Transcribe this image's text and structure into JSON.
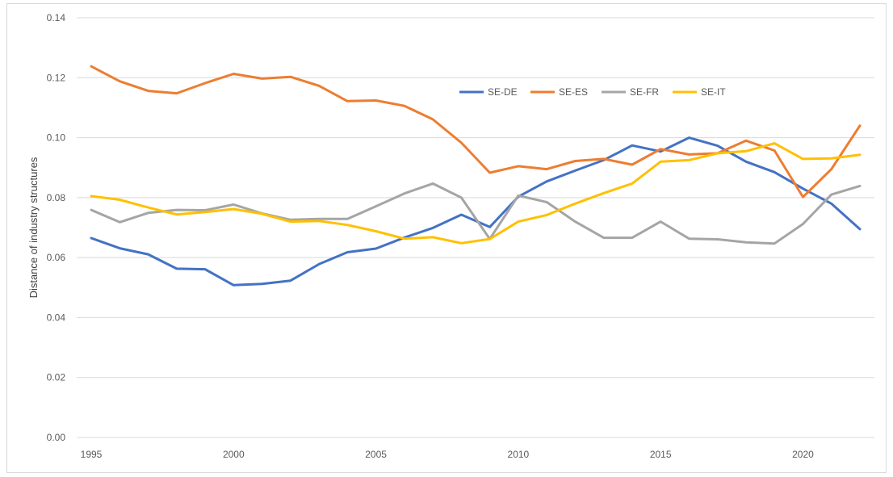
{
  "chart_data": {
    "type": "line",
    "title": "",
    "xlabel": "",
    "ylabel": "Distance of industry structures",
    "xlim": [
      1995,
      2022
    ],
    "ylim": [
      0,
      0.14
    ],
    "x_ticks": [
      1995,
      2000,
      2005,
      2010,
      2015,
      2020
    ],
    "x_tick_labels": [
      "1995",
      "2000",
      "2005",
      "2010",
      "2015",
      "2020"
    ],
    "y_ticks": [
      0,
      0.02,
      0.04,
      0.06,
      0.08,
      0.1,
      0.12,
      0.14
    ],
    "y_tick_labels": [
      "0.00",
      "0.02",
      "0.04",
      "0.06",
      "0.08",
      "0.10",
      "0.12",
      "0.14"
    ],
    "grid": true,
    "legend_position": "top-center",
    "x": [
      1995,
      1996,
      1997,
      1998,
      1999,
      2000,
      2001,
      2002,
      2003,
      2004,
      2005,
      2006,
      2007,
      2008,
      2009,
      2010,
      2011,
      2012,
      2013,
      2014,
      2015,
      2016,
      2017,
      2018,
      2019,
      2020,
      2021,
      2022
    ],
    "series": [
      {
        "name": "SE-DE",
        "color": "#4472c4",
        "values": [
          0.0665,
          0.0631,
          0.0611,
          0.0563,
          0.0561,
          0.0508,
          0.0512,
          0.0523,
          0.0578,
          0.0618,
          0.063,
          0.0667,
          0.0699,
          0.0743,
          0.0702,
          0.0803,
          0.0854,
          0.089,
          0.0925,
          0.0974,
          0.0954,
          0.1,
          0.0973,
          0.092,
          0.0885,
          0.083,
          0.078,
          0.0695
        ]
      },
      {
        "name": "SE-ES",
        "color": "#ed7d31",
        "values": [
          0.1238,
          0.1188,
          0.1156,
          0.1148,
          0.1182,
          0.1213,
          0.1197,
          0.1203,
          0.1173,
          0.1122,
          0.1124,
          0.1106,
          0.1061,
          0.0983,
          0.0883,
          0.0905,
          0.0895,
          0.0922,
          0.0929,
          0.091,
          0.0962,
          0.0944,
          0.0948,
          0.099,
          0.0957,
          0.0802,
          0.0895,
          0.104
        ]
      },
      {
        "name": "SE-FR",
        "color": "#a5a5a5",
        "values": [
          0.0759,
          0.0718,
          0.0749,
          0.0759,
          0.0758,
          0.0777,
          0.0747,
          0.0726,
          0.0729,
          0.0729,
          0.0771,
          0.0814,
          0.0847,
          0.08,
          0.0662,
          0.0807,
          0.0785,
          0.072,
          0.0666,
          0.0666,
          0.072,
          0.0663,
          0.0661,
          0.0651,
          0.0647,
          0.0712,
          0.081,
          0.0839
        ]
      },
      {
        "name": "SE-IT",
        "color": "#ffc000",
        "values": [
          0.0805,
          0.0793,
          0.0767,
          0.0744,
          0.0752,
          0.0762,
          0.0746,
          0.072,
          0.0722,
          0.0709,
          0.0688,
          0.0663,
          0.0668,
          0.0648,
          0.0662,
          0.072,
          0.0742,
          0.078,
          0.0815,
          0.0847,
          0.092,
          0.0925,
          0.0948,
          0.0955,
          0.0981,
          0.0929,
          0.0931,
          0.0943
        ]
      }
    ]
  }
}
